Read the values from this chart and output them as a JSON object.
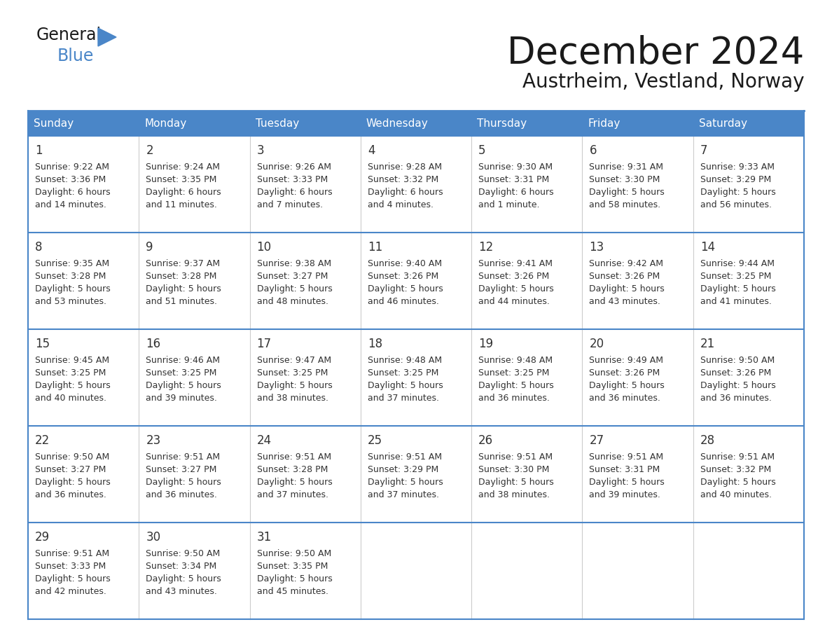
{
  "title": "December 2024",
  "subtitle": "Austrheim, Vestland, Norway",
  "header_color": "#4a86c8",
  "header_text_color": "#ffffff",
  "cell_bg_color": "#ffffff",
  "row_separator_color": "#4a86c8",
  "title_color": "#1a1a1a",
  "day_number_color": "#333333",
  "cell_text_color": "#333333",
  "day_headers": [
    "Sunday",
    "Monday",
    "Tuesday",
    "Wednesday",
    "Thursday",
    "Friday",
    "Saturday"
  ],
  "days": [
    {
      "day": 1,
      "col": 0,
      "row": 0,
      "sunrise": "9:22 AM",
      "sunset": "3:36 PM",
      "daylight_h": "6 hours",
      "daylight_m": "and 14 minutes."
    },
    {
      "day": 2,
      "col": 1,
      "row": 0,
      "sunrise": "9:24 AM",
      "sunset": "3:35 PM",
      "daylight_h": "6 hours",
      "daylight_m": "and 11 minutes."
    },
    {
      "day": 3,
      "col": 2,
      "row": 0,
      "sunrise": "9:26 AM",
      "sunset": "3:33 PM",
      "daylight_h": "6 hours",
      "daylight_m": "and 7 minutes."
    },
    {
      "day": 4,
      "col": 3,
      "row": 0,
      "sunrise": "9:28 AM",
      "sunset": "3:32 PM",
      "daylight_h": "6 hours",
      "daylight_m": "and 4 minutes."
    },
    {
      "day": 5,
      "col": 4,
      "row": 0,
      "sunrise": "9:30 AM",
      "sunset": "3:31 PM",
      "daylight_h": "6 hours",
      "daylight_m": "and 1 minute."
    },
    {
      "day": 6,
      "col": 5,
      "row": 0,
      "sunrise": "9:31 AM",
      "sunset": "3:30 PM",
      "daylight_h": "5 hours",
      "daylight_m": "and 58 minutes."
    },
    {
      "day": 7,
      "col": 6,
      "row": 0,
      "sunrise": "9:33 AM",
      "sunset": "3:29 PM",
      "daylight_h": "5 hours",
      "daylight_m": "and 56 minutes."
    },
    {
      "day": 8,
      "col": 0,
      "row": 1,
      "sunrise": "9:35 AM",
      "sunset": "3:28 PM",
      "daylight_h": "5 hours",
      "daylight_m": "and 53 minutes."
    },
    {
      "day": 9,
      "col": 1,
      "row": 1,
      "sunrise": "9:37 AM",
      "sunset": "3:28 PM",
      "daylight_h": "5 hours",
      "daylight_m": "and 51 minutes."
    },
    {
      "day": 10,
      "col": 2,
      "row": 1,
      "sunrise": "9:38 AM",
      "sunset": "3:27 PM",
      "daylight_h": "5 hours",
      "daylight_m": "and 48 minutes."
    },
    {
      "day": 11,
      "col": 3,
      "row": 1,
      "sunrise": "9:40 AM",
      "sunset": "3:26 PM",
      "daylight_h": "5 hours",
      "daylight_m": "and 46 minutes."
    },
    {
      "day": 12,
      "col": 4,
      "row": 1,
      "sunrise": "9:41 AM",
      "sunset": "3:26 PM",
      "daylight_h": "5 hours",
      "daylight_m": "and 44 minutes."
    },
    {
      "day": 13,
      "col": 5,
      "row": 1,
      "sunrise": "9:42 AM",
      "sunset": "3:26 PM",
      "daylight_h": "5 hours",
      "daylight_m": "and 43 minutes."
    },
    {
      "day": 14,
      "col": 6,
      "row": 1,
      "sunrise": "9:44 AM",
      "sunset": "3:25 PM",
      "daylight_h": "5 hours",
      "daylight_m": "and 41 minutes."
    },
    {
      "day": 15,
      "col": 0,
      "row": 2,
      "sunrise": "9:45 AM",
      "sunset": "3:25 PM",
      "daylight_h": "5 hours",
      "daylight_m": "and 40 minutes."
    },
    {
      "day": 16,
      "col": 1,
      "row": 2,
      "sunrise": "9:46 AM",
      "sunset": "3:25 PM",
      "daylight_h": "5 hours",
      "daylight_m": "and 39 minutes."
    },
    {
      "day": 17,
      "col": 2,
      "row": 2,
      "sunrise": "9:47 AM",
      "sunset": "3:25 PM",
      "daylight_h": "5 hours",
      "daylight_m": "and 38 minutes."
    },
    {
      "day": 18,
      "col": 3,
      "row": 2,
      "sunrise": "9:48 AM",
      "sunset": "3:25 PM",
      "daylight_h": "5 hours",
      "daylight_m": "and 37 minutes."
    },
    {
      "day": 19,
      "col": 4,
      "row": 2,
      "sunrise": "9:48 AM",
      "sunset": "3:25 PM",
      "daylight_h": "5 hours",
      "daylight_m": "and 36 minutes."
    },
    {
      "day": 20,
      "col": 5,
      "row": 2,
      "sunrise": "9:49 AM",
      "sunset": "3:26 PM",
      "daylight_h": "5 hours",
      "daylight_m": "and 36 minutes."
    },
    {
      "day": 21,
      "col": 6,
      "row": 2,
      "sunrise": "9:50 AM",
      "sunset": "3:26 PM",
      "daylight_h": "5 hours",
      "daylight_m": "and 36 minutes."
    },
    {
      "day": 22,
      "col": 0,
      "row": 3,
      "sunrise": "9:50 AM",
      "sunset": "3:27 PM",
      "daylight_h": "5 hours",
      "daylight_m": "and 36 minutes."
    },
    {
      "day": 23,
      "col": 1,
      "row": 3,
      "sunrise": "9:51 AM",
      "sunset": "3:27 PM",
      "daylight_h": "5 hours",
      "daylight_m": "and 36 minutes."
    },
    {
      "day": 24,
      "col": 2,
      "row": 3,
      "sunrise": "9:51 AM",
      "sunset": "3:28 PM",
      "daylight_h": "5 hours",
      "daylight_m": "and 37 minutes."
    },
    {
      "day": 25,
      "col": 3,
      "row": 3,
      "sunrise": "9:51 AM",
      "sunset": "3:29 PM",
      "daylight_h": "5 hours",
      "daylight_m": "and 37 minutes."
    },
    {
      "day": 26,
      "col": 4,
      "row": 3,
      "sunrise": "9:51 AM",
      "sunset": "3:30 PM",
      "daylight_h": "5 hours",
      "daylight_m": "and 38 minutes."
    },
    {
      "day": 27,
      "col": 5,
      "row": 3,
      "sunrise": "9:51 AM",
      "sunset": "3:31 PM",
      "daylight_h": "5 hours",
      "daylight_m": "and 39 minutes."
    },
    {
      "day": 28,
      "col": 6,
      "row": 3,
      "sunrise": "9:51 AM",
      "sunset": "3:32 PM",
      "daylight_h": "5 hours",
      "daylight_m": "and 40 minutes."
    },
    {
      "day": 29,
      "col": 0,
      "row": 4,
      "sunrise": "9:51 AM",
      "sunset": "3:33 PM",
      "daylight_h": "5 hours",
      "daylight_m": "and 42 minutes."
    },
    {
      "day": 30,
      "col": 1,
      "row": 4,
      "sunrise": "9:50 AM",
      "sunset": "3:34 PM",
      "daylight_h": "5 hours",
      "daylight_m": "and 43 minutes."
    },
    {
      "day": 31,
      "col": 2,
      "row": 4,
      "sunrise": "9:50 AM",
      "sunset": "3:35 PM",
      "daylight_h": "5 hours",
      "daylight_m": "and 45 minutes."
    }
  ],
  "logo_general_color": "#1a1a1a",
  "logo_blue_color": "#4a86c8",
  "logo_triangle_color": "#4a86c8"
}
